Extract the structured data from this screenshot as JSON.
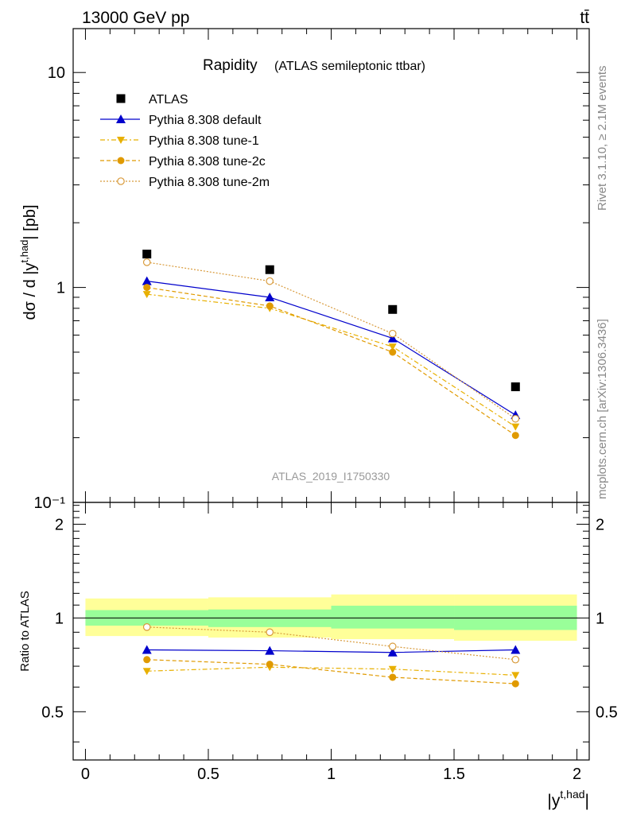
{
  "header": {
    "energy_label": "13000 GeV pp",
    "process_label": "tt̄"
  },
  "side_labels": {
    "rivet": "Rivet 3.1.10, ≥ 2.1M events",
    "mcplots": "mcplots.cern.ch [arXiv:1306.3436]"
  },
  "analysis_id": "ATLAS_2019_I1750330",
  "colors": {
    "atlas": "#000000",
    "default": "#0000cc",
    "tune1": "#e8b000",
    "tune2c": "#e09a00",
    "tune2m": "#d89a3a",
    "band_inner": "#99ff99",
    "band_outer": "#ffff99"
  },
  "chart_data": {
    "type": "scatter",
    "title_main": "Rapidity",
    "title_sub": "(ATLAS semileptonic ttbar)",
    "xlabel": "|y^{t,had}|",
    "ylabel": "dσ / d |y^{t,had}| [pb]",
    "ratio_ylabel": "Ratio to ATLAS",
    "xlim": [
      -0.05,
      2.05
    ],
    "ylim": [
      0.1,
      16
    ],
    "yscale": "log",
    "ratio_ylim": [
      0.35,
      2.35
    ],
    "ratio_yscale": "log",
    "x_ticks": [
      "0",
      "0.5",
      "1",
      "1.5",
      "2"
    ],
    "y_ticks": [
      "10⁻¹",
      "1",
      "10"
    ],
    "ratio_ticks": [
      "0.5",
      "1",
      "2"
    ],
    "bins": [
      [
        0,
        0.5
      ],
      [
        0.5,
        1.0
      ],
      [
        1.0,
        1.5
      ],
      [
        1.5,
        2.0
      ]
    ],
    "x": [
      0.25,
      0.75,
      1.25,
      1.75
    ],
    "legend_position": "top-left",
    "series": [
      {
        "name": "ATLAS",
        "key": "atlas",
        "values": [
          1.43,
          1.21,
          0.79,
          0.345
        ],
        "ratio": [
          1,
          1,
          1,
          1
        ]
      },
      {
        "name": "Pythia 8.308 default",
        "key": "default",
        "values": [
          1.07,
          0.9,
          0.58,
          0.255
        ],
        "ratio": [
          0.79,
          0.785,
          0.775,
          0.79
        ]
      },
      {
        "name": "Pythia 8.308 tune-1",
        "key": "tune1",
        "values": [
          0.93,
          0.8,
          0.53,
          0.225
        ],
        "ratio": [
          0.675,
          0.695,
          0.685,
          0.655
        ]
      },
      {
        "name": "Pythia 8.308 tune-2c",
        "key": "tune2c",
        "values": [
          1.0,
          0.82,
          0.5,
          0.205
        ],
        "ratio": [
          0.735,
          0.71,
          0.645,
          0.615
        ]
      },
      {
        "name": "Pythia 8.308 tune-2m",
        "key": "tune2m",
        "values": [
          1.31,
          1.07,
          0.61,
          0.245
        ],
        "ratio": [
          0.935,
          0.9,
          0.81,
          0.735
        ]
      }
    ],
    "ratio_band_inner": [
      [
        0.945,
        1.06
      ],
      [
        0.935,
        1.065
      ],
      [
        0.925,
        1.095
      ],
      [
        0.915,
        1.095
      ]
    ],
    "ratio_band_outer": [
      [
        0.875,
        1.155
      ],
      [
        0.865,
        1.165
      ],
      [
        0.855,
        1.19
      ],
      [
        0.845,
        1.19
      ]
    ]
  }
}
